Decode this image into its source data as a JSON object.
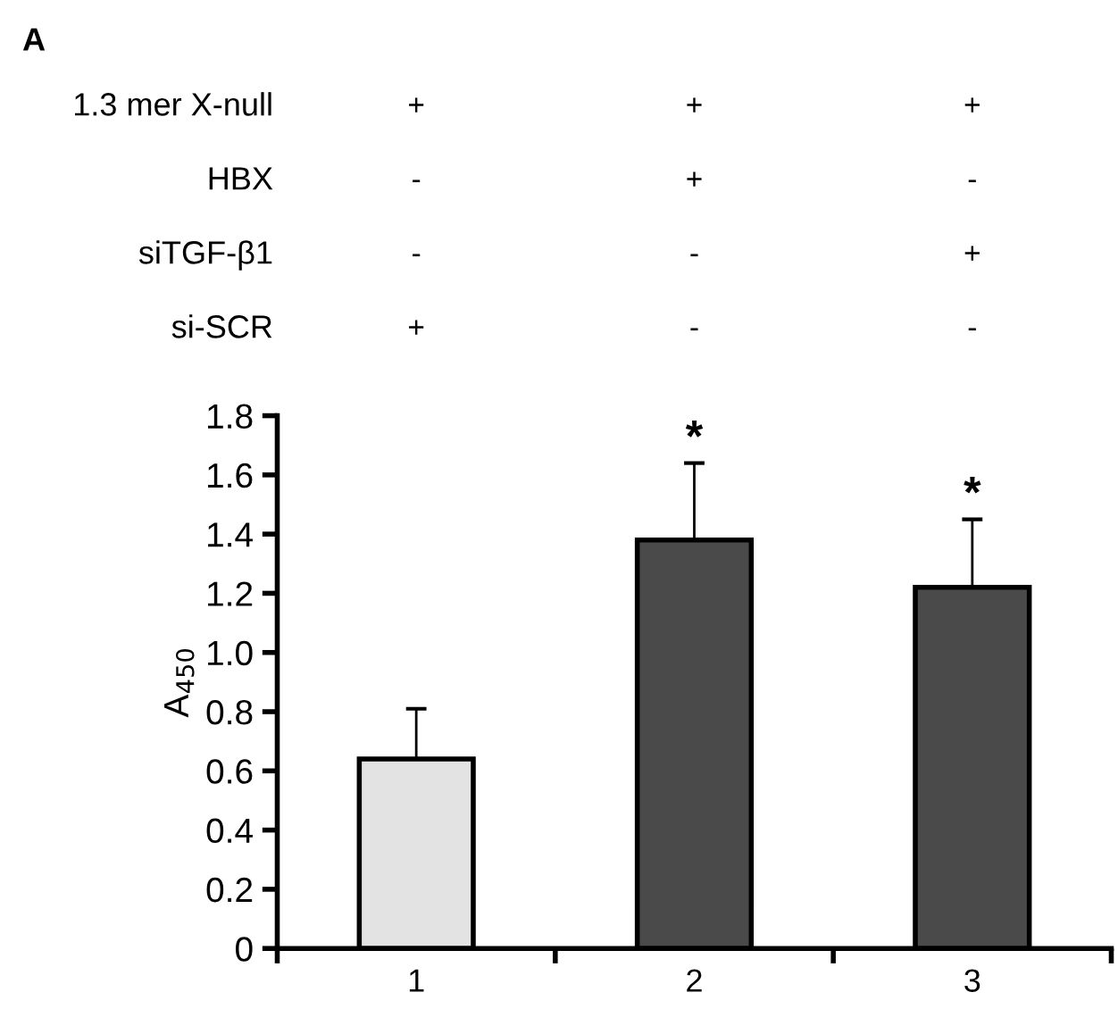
{
  "chart_data": {
    "type": "bar",
    "title": "A",
    "categories": [
      "1",
      "2",
      "3"
    ],
    "values": [
      0.64,
      1.38,
      1.22
    ],
    "colors": [
      "#e3e3e3",
      "#4a4a4a",
      "#4a4a4a"
    ],
    "errors": [
      [
        0.64,
        0.81
      ],
      [
        1.38,
        1.64
      ],
      [
        1.22,
        1.45
      ]
    ],
    "ylabel": "A$_{450}$",
    "ylim": [
      0,
      1.8
    ],
    "yticks": [
      0,
      0.2,
      0.4,
      0.6,
      0.8,
      {
        "value": 1.0,
        "label": "1.0"
      },
      1.2,
      1.4,
      1.6,
      1.8
    ],
    "grid": false,
    "legend": false,
    "annotations": [
      {
        "text": "*",
        "x": "2",
        "y": 1.64
      },
      {
        "text": "*",
        "x": "3",
        "y": 1.45
      },
      "1.3 mer X-null",
      "+",
      "+",
      "+",
      "HBX",
      "-",
      "+",
      "-",
      "siTGF-β1",
      "-",
      "-",
      "+",
      "si-SCR",
      "+",
      "-",
      "-"
    ]
  }
}
